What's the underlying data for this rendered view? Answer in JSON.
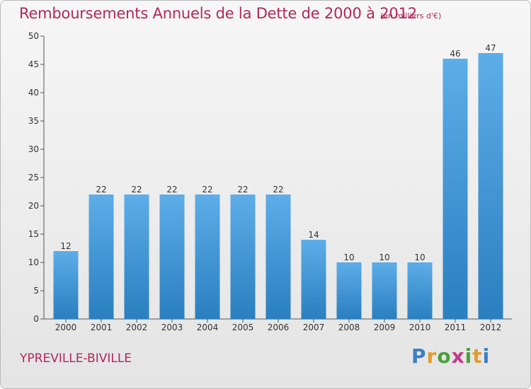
{
  "chart_data": {
    "type": "bar",
    "title": "Remboursements Annuels de la Dette de 2000 à 2012",
    "subtitle": "(en milliers d'€)",
    "categories": [
      "2000",
      "2001",
      "2002",
      "2003",
      "2004",
      "2005",
      "2006",
      "2007",
      "2008",
      "2009",
      "2010",
      "2011",
      "2012"
    ],
    "values": [
      12,
      22,
      22,
      22,
      22,
      22,
      22,
      14,
      10,
      10,
      10,
      46,
      47
    ],
    "ylim": [
      0,
      50
    ],
    "yticks": [
      0,
      5,
      10,
      15,
      20,
      25,
      30,
      35,
      40,
      45,
      50
    ],
    "grid": false,
    "bar_color_top": "#5dade8",
    "bar_color_bottom": "#2a7fc0"
  },
  "footer": {
    "commune": "YPREVILLE-BIVILLE",
    "logo_letters": [
      "P",
      "r",
      "o",
      "x",
      "i",
      "t",
      "i"
    ],
    "logo_colors": [
      "#3b7fc4",
      "#e39b2d",
      "#4aa03a",
      "#c23b8a",
      "#4aa03a",
      "#e39b2d",
      "#3b7fc4"
    ]
  }
}
